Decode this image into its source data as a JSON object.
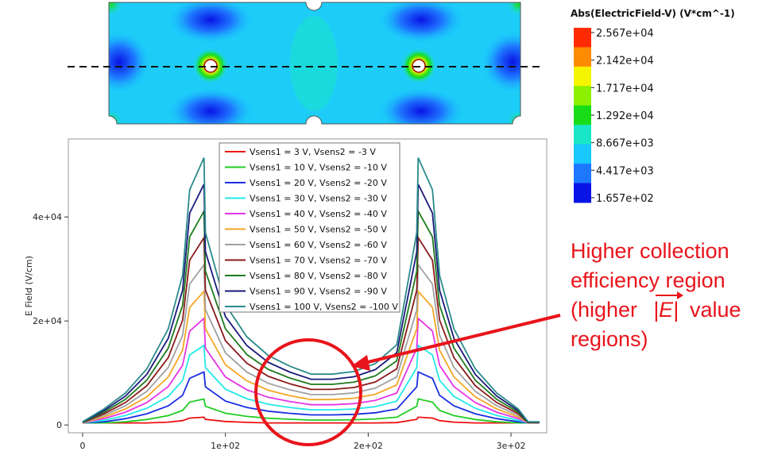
{
  "field_map": {
    "colorbar_title": "Abs(ElectricField-V) (V*cm^-1)",
    "colorbar_labels": [
      "2.567e+04",
      "2.142e+04",
      "1.717e+04",
      "1.292e+04",
      "8.667e+03",
      "4.417e+03",
      "1.657e+02"
    ],
    "colorbar_colors": [
      "#ff2a00",
      "#ff8c00",
      "#f5f500",
      "#8cf000",
      "#19dc19",
      "#19e6c8",
      "#19c8ff",
      "#1e78ff",
      "#0a14e6"
    ]
  },
  "annotation": {
    "line1": "Higher collection",
    "line2": "efficiency region",
    "line3_pre": "(higher",
    "vec_symbol": "|E|",
    "line3_post": "value",
    "line4": "regions)",
    "color": "#e8141b"
  },
  "chart_data": {
    "type": "line",
    "title": "",
    "xlabel": "",
    "ylabel": "E Field (V/cm)",
    "xlim": [
      -10,
      325
    ],
    "ylim": [
      -1500,
      55000
    ],
    "x_ticks": [
      0,
      100,
      200,
      300
    ],
    "x_tick_labels": [
      "0",
      "1e+02",
      "2e+02",
      "3e+02"
    ],
    "y_ticks": [
      0,
      20000,
      40000
    ],
    "y_tick_labels": [
      "0",
      "2e+04",
      "4e+04"
    ],
    "legend_position": "top-center",
    "x": [
      0,
      15,
      30,
      45,
      60,
      70,
      75,
      85,
      86,
      100,
      115,
      130,
      145,
      160,
      175,
      190,
      205,
      220,
      234,
      235,
      245,
      250,
      260,
      275,
      290,
      305,
      312,
      320
    ],
    "series": [
      {
        "name": "Vsens1 = 3 V, Vsens2 = -3 V",
        "color": "#ee1111",
        "peak": 1500
      },
      {
        "name": "Vsens1 = 10 V, Vsens2 = -10 V",
        "color": "#22cc22",
        "peak": 5000
      },
      {
        "name": "Vsens1 = 20 V, Vsens2 = -20 V",
        "color": "#1a2ee0",
        "peak": 10200
      },
      {
        "name": "Vsens1 = 30 V, Vsens2 = -30 V",
        "color": "#22e8e8",
        "peak": 15300
      },
      {
        "name": "Vsens1 = 40 V, Vsens2 = -40 V",
        "color": "#e633e6",
        "peak": 20500
      },
      {
        "name": "Vsens1 = 50 V, Vsens2 = -50 V",
        "color": "#f5a623",
        "peak": 25700
      },
      {
        "name": "Vsens1 = 60 V, Vsens2 = -60 V",
        "color": "#a0a0a0",
        "peak": 30800
      },
      {
        "name": "Vsens1 = 70 V, Vsens2 = -70 V",
        "color": "#8b1a1a",
        "peak": 36000
      },
      {
        "name": "Vsens1 = 80 V, Vsens2 = -80 V",
        "color": "#1e7a1e",
        "peak": 41100
      },
      {
        "name": "Vsens1 = 90 V, Vsens2 = -90 V",
        "color": "#1a1a7a",
        "peak": 46300
      },
      {
        "name": "Vsens1 = 100 V, Vsens2 = -100 V",
        "color": "#2a8a8a",
        "peak": 51400
      }
    ],
    "shape_profile": [
      0.012,
      0.06,
      0.12,
      0.21,
      0.36,
      0.56,
      0.88,
      1.0,
      0.72,
      0.45,
      0.33,
      0.26,
      0.22,
      0.19,
      0.19,
      0.2,
      0.23,
      0.3,
      0.72,
      1.0,
      0.88,
      0.56,
      0.36,
      0.21,
      0.12,
      0.06,
      0.012,
      0.012
    ]
  }
}
